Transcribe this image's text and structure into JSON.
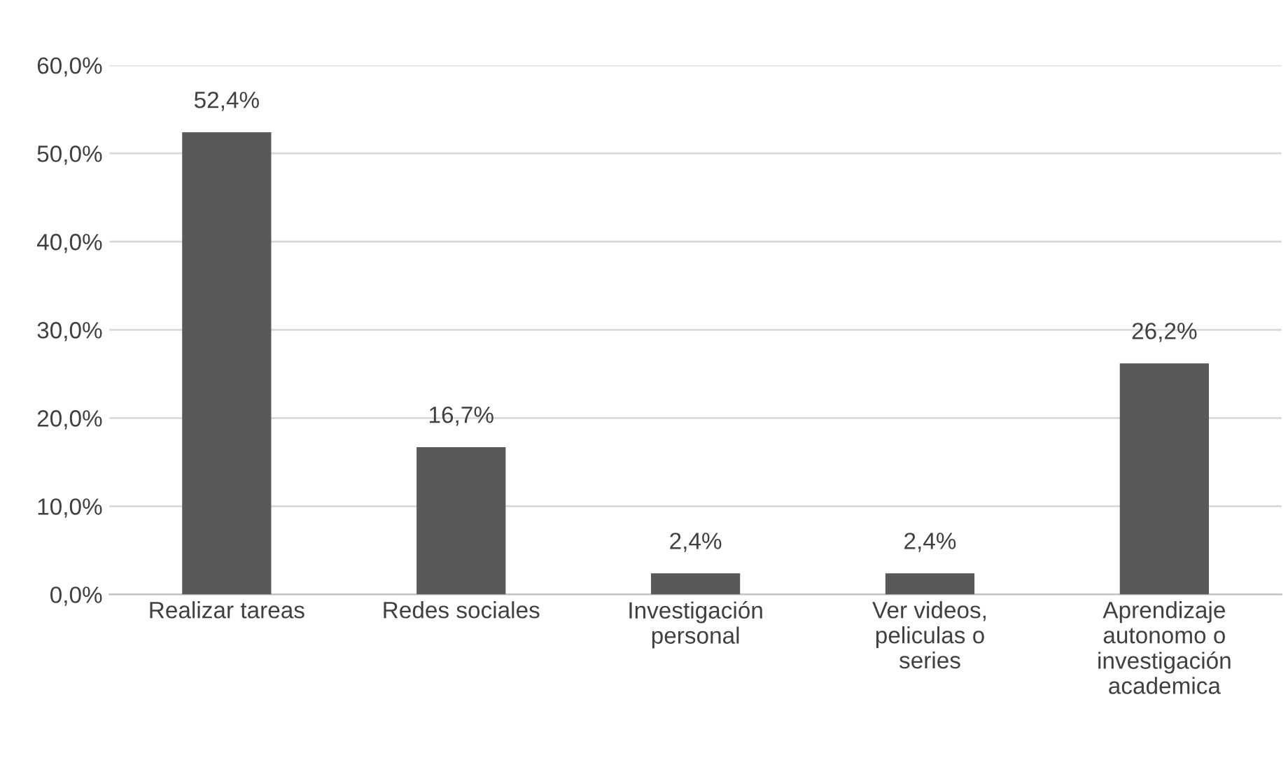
{
  "chart_data": {
    "type": "bar",
    "categories": [
      "Realizar tareas",
      "Redes sociales",
      "Investigación\npersonal",
      "Ver videos,\npeliculas o\nseries",
      "Aprendizaje\nautonomo o\ninvestigación\nacademica"
    ],
    "values": [
      52.4,
      16.7,
      2.4,
      2.4,
      26.2
    ],
    "value_labels": [
      "52,4%",
      "16,7%",
      "2,4%",
      "2,4%",
      "26,2%"
    ],
    "color": "#595959",
    "ylim": [
      0,
      60
    ],
    "yticks": [
      {
        "value": 0,
        "label": "0,0%"
      },
      {
        "value": 10,
        "label": "10,0%"
      },
      {
        "value": 20,
        "label": "20,0%"
      },
      {
        "value": 30,
        "label": "30,0%"
      },
      {
        "value": 40,
        "label": "40,0%"
      },
      {
        "value": 50,
        "label": "50,0%"
      },
      {
        "value": 60,
        "label": "60,0%"
      }
    ],
    "grid": "y"
  }
}
